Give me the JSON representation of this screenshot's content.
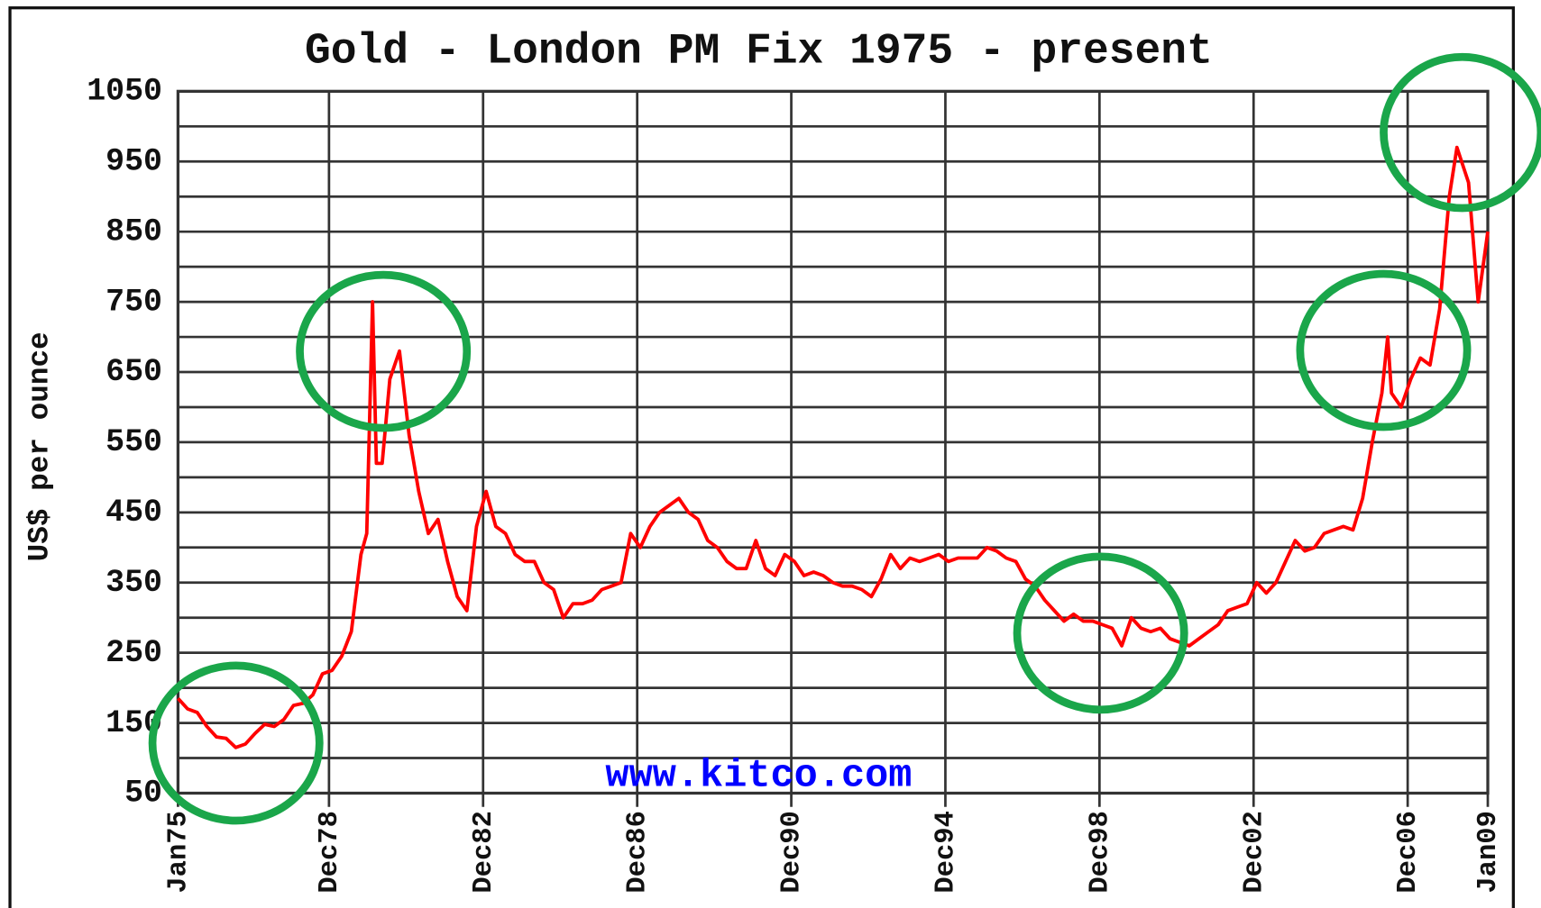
{
  "chart_data": {
    "type": "line",
    "title": "Gold - London PM Fix 1975 - present",
    "ylabel": "US$ per ounce",
    "watermark": "www.kitco.com",
    "color": "#ff0000",
    "xlim": [
      1975,
      2009
    ],
    "ylim": [
      50,
      1050
    ],
    "xticks": [
      {
        "value": 1975,
        "label": "Jan75"
      },
      {
        "value": 1978.92,
        "label": "Dec78"
      },
      {
        "value": 1982.92,
        "label": "Dec82"
      },
      {
        "value": 1986.92,
        "label": "Dec86"
      },
      {
        "value": 1990.92,
        "label": "Dec90"
      },
      {
        "value": 1994.92,
        "label": "Dec94"
      },
      {
        "value": 1998.92,
        "label": "Dec98"
      },
      {
        "value": 2002.92,
        "label": "Dec02"
      },
      {
        "value": 2006.92,
        "label": "Dec06"
      },
      {
        "value": 2009,
        "label": "Jan09"
      }
    ],
    "yticks": [
      50,
      150,
      250,
      350,
      450,
      550,
      650,
      750,
      850,
      950,
      1050
    ],
    "yticks_minor": [
      100,
      200,
      300,
      400,
      500,
      600,
      700,
      800,
      900,
      1000
    ],
    "grid": true,
    "x": [
      1975.0,
      1975.25,
      1975.5,
      1975.75,
      1976.0,
      1976.25,
      1976.5,
      1976.75,
      1977.0,
      1977.25,
      1977.5,
      1977.75,
      1978.0,
      1978.25,
      1978.5,
      1978.75,
      1979.0,
      1979.25,
      1979.5,
      1979.75,
      1979.9,
      1980.05,
      1980.15,
      1980.3,
      1980.5,
      1980.75,
      1981.0,
      1981.25,
      1981.5,
      1981.75,
      1982.0,
      1982.25,
      1982.5,
      1982.75,
      1983.0,
      1983.25,
      1983.5,
      1983.75,
      1984.0,
      1984.25,
      1984.5,
      1984.75,
      1985.0,
      1985.25,
      1985.5,
      1985.75,
      1986.0,
      1986.25,
      1986.5,
      1986.75,
      1987.0,
      1987.25,
      1987.5,
      1987.75,
      1988.0,
      1988.25,
      1988.5,
      1988.75,
      1989.0,
      1989.25,
      1989.5,
      1989.75,
      1990.0,
      1990.25,
      1990.5,
      1990.75,
      1991.0,
      1991.25,
      1991.5,
      1991.75,
      1992.0,
      1992.25,
      1992.5,
      1992.75,
      1993.0,
      1993.25,
      1993.5,
      1993.75,
      1994.0,
      1994.25,
      1994.5,
      1994.75,
      1995.0,
      1995.25,
      1995.5,
      1995.75,
      1996.0,
      1996.25,
      1996.5,
      1996.75,
      1997.0,
      1997.25,
      1997.5,
      1997.75,
      1998.0,
      1998.25,
      1998.5,
      1998.75,
      1999.0,
      1999.25,
      1999.5,
      1999.75,
      2000.0,
      2000.25,
      2000.5,
      2000.75,
      2001.0,
      2001.25,
      2001.5,
      2001.75,
      2002.0,
      2002.25,
      2002.5,
      2002.75,
      2003.0,
      2003.25,
      2003.5,
      2003.75,
      2004.0,
      2004.25,
      2004.5,
      2004.75,
      2005.0,
      2005.25,
      2005.5,
      2005.75,
      2006.0,
      2006.25,
      2006.4,
      2006.5,
      2006.75,
      2007.0,
      2007.25,
      2007.5,
      2007.75,
      2008.0,
      2008.2,
      2008.5,
      2008.75,
      2009.0
    ],
    "values": [
      185,
      170,
      165,
      145,
      130,
      128,
      115,
      120,
      135,
      148,
      145,
      155,
      175,
      178,
      190,
      220,
      225,
      245,
      280,
      390,
      420,
      750,
      520,
      520,
      640,
      680,
      560,
      480,
      420,
      440,
      380,
      330,
      310,
      430,
      480,
      430,
      420,
      390,
      380,
      380,
      350,
      340,
      300,
      320,
      320,
      325,
      340,
      345,
      350,
      420,
      400,
      430,
      450,
      460,
      470,
      450,
      440,
      410,
      400,
      380,
      370,
      370,
      410,
      370,
      360,
      390,
      380,
      360,
      365,
      360,
      350,
      345,
      345,
      340,
      330,
      355,
      390,
      370,
      385,
      380,
      385,
      390,
      380,
      385,
      385,
      385,
      400,
      395,
      385,
      380,
      355,
      345,
      325,
      310,
      295,
      305,
      295,
      295,
      290,
      285,
      260,
      300,
      285,
      280,
      285,
      270,
      265,
      260,
      270,
      280,
      290,
      310,
      315,
      320,
      350,
      335,
      350,
      380,
      410,
      395,
      400,
      420,
      425,
      430,
      425,
      470,
      550,
      620,
      700,
      620,
      600,
      640,
      670,
      660,
      740,
      900,
      970,
      920,
      750,
      850
    ]
  }
}
